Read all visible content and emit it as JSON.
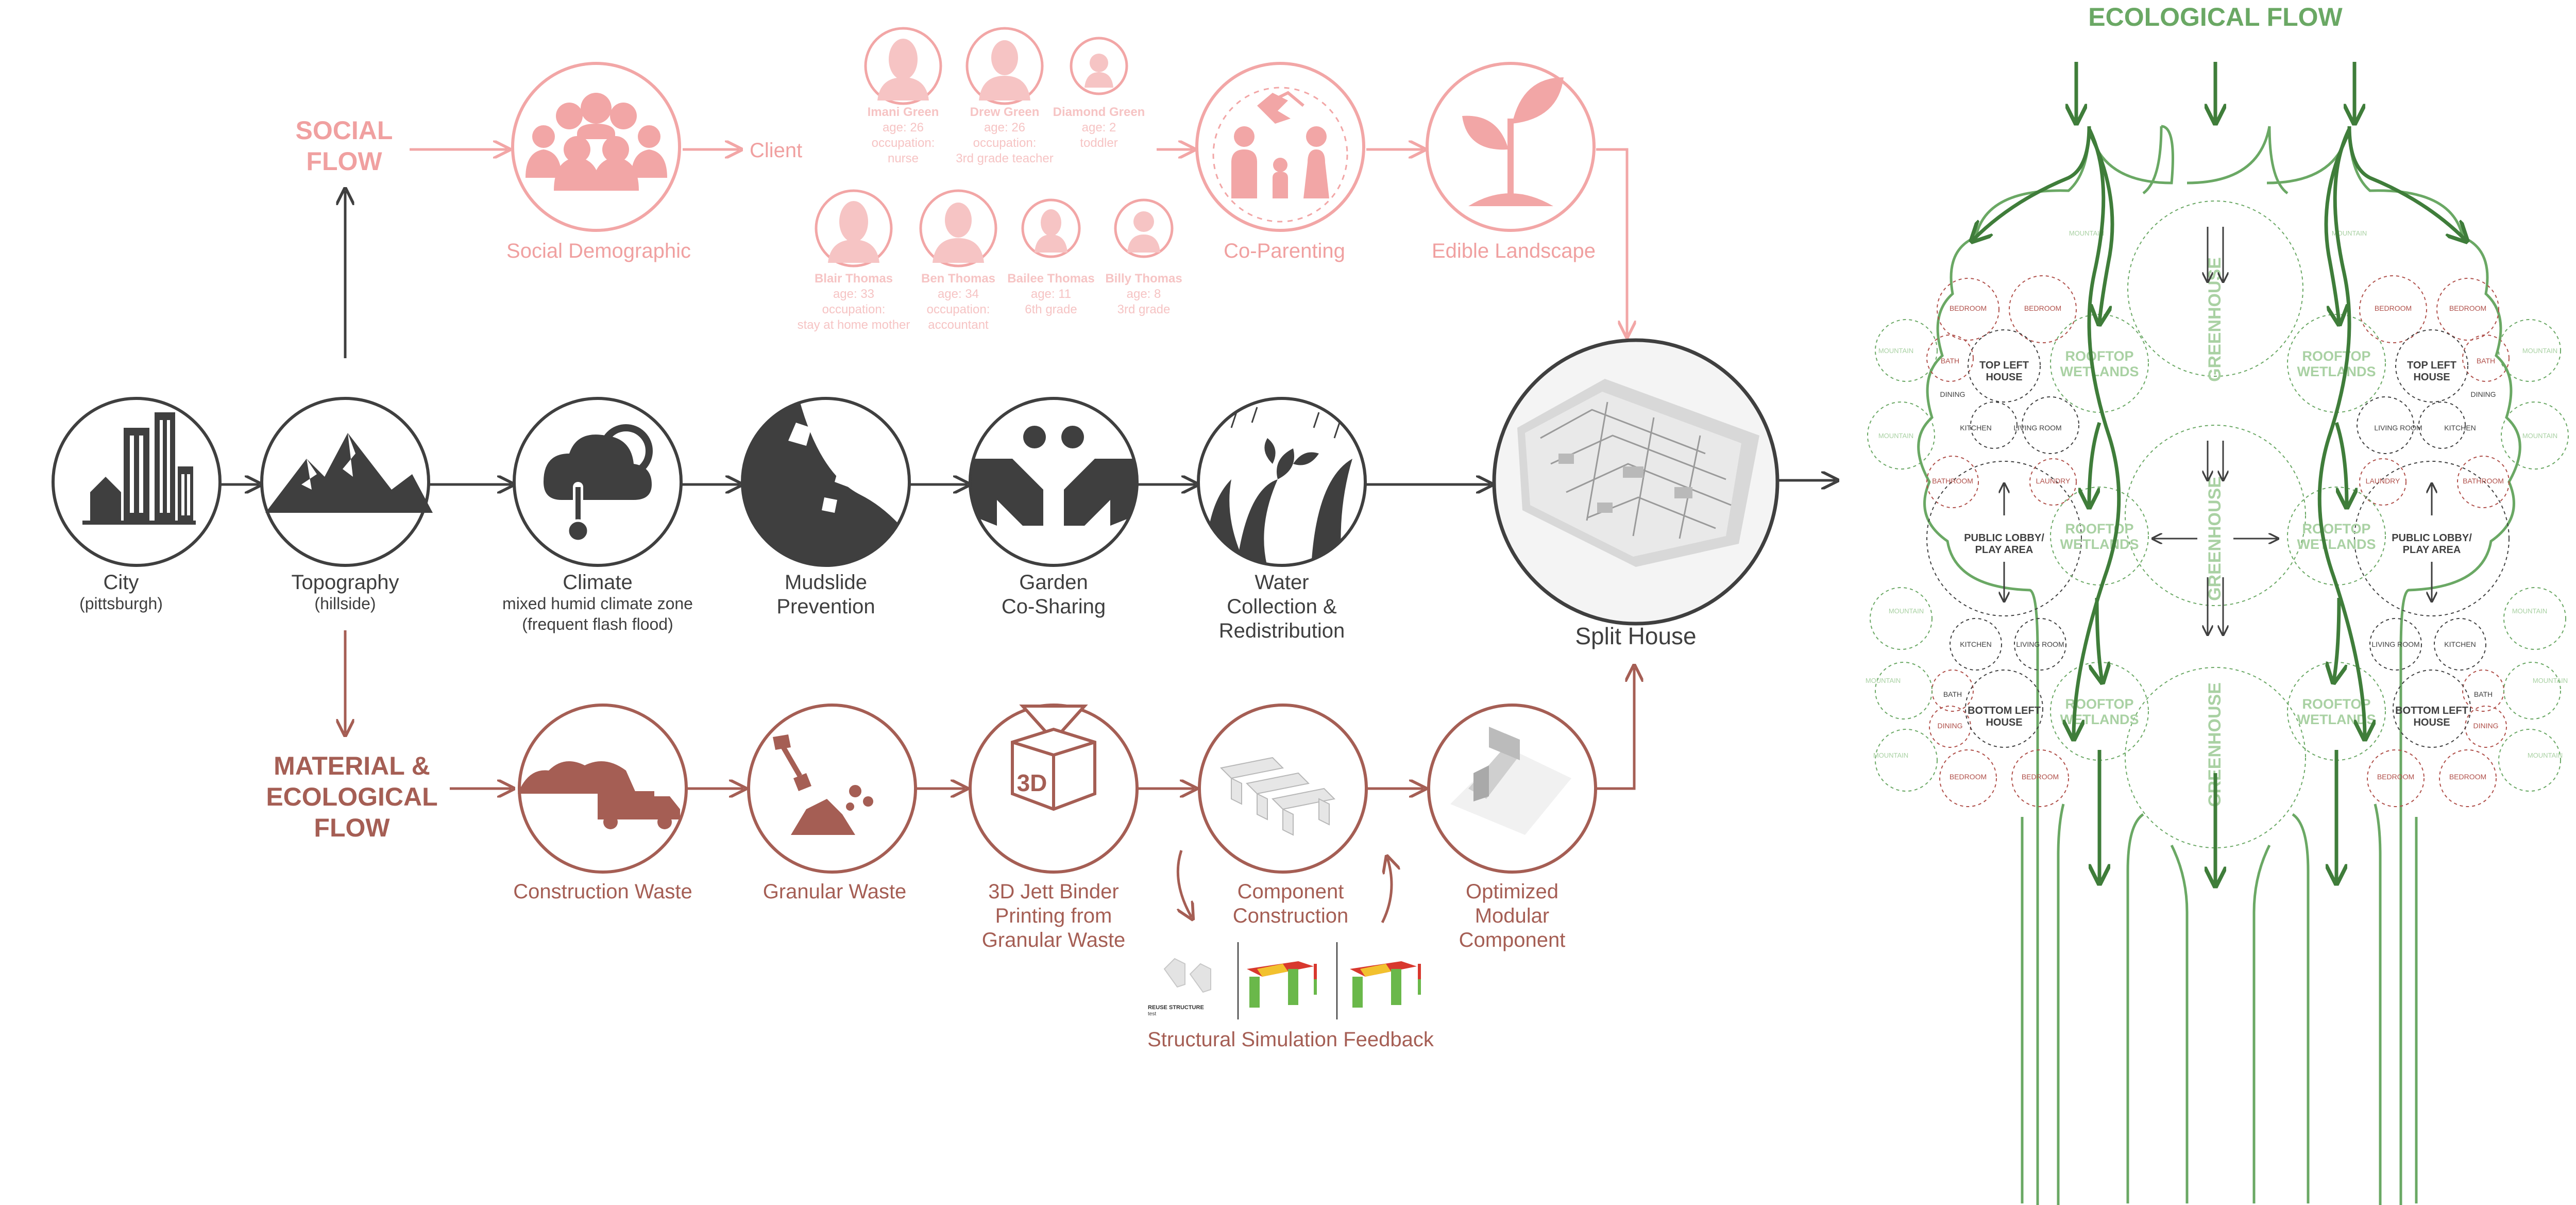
{
  "colors": {
    "dark": "#3f3f3f",
    "pink": "#f2a6a6",
    "pink_text": "#f0a0a0",
    "pink_light": "#f6c4c4",
    "brown": "#a55e54",
    "green": "#6aa864",
    "green_dark": "#3f7d3a",
    "green_light": "#a9d1a3",
    "red_small": "#b0504a"
  },
  "social_flow": {
    "heading_line1": "SOCIAL",
    "heading_line2": "FLOW",
    "social_demographic": "Social Demographic",
    "client": "Client",
    "co_parenting": "Co-Parenting",
    "edible_landscape": "Edible Landscape",
    "people": [
      {
        "name": "Imani Green",
        "age": "age: 26",
        "occ1": "occupation:",
        "occ2": "nurse"
      },
      {
        "name": "Drew Green",
        "age": "age: 26",
        "occ1": "occupation:",
        "occ2": "3rd grade teacher"
      },
      {
        "name": "Diamond Green",
        "age": "age: 2",
        "occ1": "toddler",
        "occ2": ""
      },
      {
        "name": "Blair Thomas",
        "age": "age: 33",
        "occ1": "occupation:",
        "occ2": "stay at home mother"
      },
      {
        "name": "Ben Thomas",
        "age": "age: 34",
        "occ1": "occupation:",
        "occ2": "accountant"
      },
      {
        "name": "Bailee Thomas",
        "age": "age: 11",
        "occ1": "6th grade",
        "occ2": ""
      },
      {
        "name": "Billy Thomas",
        "age": "age: 8",
        "occ1": "3rd grade",
        "occ2": ""
      }
    ]
  },
  "main_flow": {
    "city": "City",
    "city_sub": "(pittsburgh)",
    "topography": "Topography",
    "topography_sub": "(hillside)",
    "climate": "Climate",
    "climate_sub1": "mixed humid climate zone",
    "climate_sub2": "(frequent flash flood)",
    "mudslide1": "Mudslide",
    "mudslide2": "Prevention",
    "garden1": "Garden",
    "garden2": "Co-Sharing",
    "water1": "Water",
    "water2": "Collection &",
    "water3": "Redistribution",
    "split_house": "Split House"
  },
  "material_flow": {
    "heading_line1": "MATERIAL &",
    "heading_line2": "ECOLOGICAL",
    "heading_line3": "FLOW",
    "construction_waste": "Construction Waste",
    "granular_waste": "Granular Waste",
    "printing1": "3D Jett Binder",
    "printing2": "Printing from",
    "printing3": "Granular Waste",
    "printing_icon_text": "3D",
    "component1": "Component",
    "component2": "Construction",
    "optimized1": "Optimized",
    "optimized2": "Modular",
    "optimized3": "Component",
    "feedback": "Structural Simulation Feedback",
    "thumb_caption1": "REUSE STRUCTURE",
    "thumb_caption2": "test"
  },
  "ecological_flow": {
    "title": "ECOLOGICAL FLOW",
    "greenhouse": "GREENHOUSE",
    "rooftop": "ROOFTOP",
    "wetlands": "WETLANDS",
    "top_left_house1": "TOP LEFT",
    "top_left_house2": "HOUSE",
    "bottom_left_house1": "BOTTOM LEFT",
    "bottom_left_house2": "HOUSE",
    "public_lobby1": "PUBLIC LOBBY/",
    "public_lobby2": "PLAY AREA",
    "bedroom": "BEDROOM",
    "bath": "BATH",
    "bathroom": "BATHROOM",
    "laundry": "LAUNDRY",
    "kitchen": "KITCHEN",
    "living_room": "LIVING ROOM",
    "dining": "DINING",
    "mountain": "MOUNTAIN"
  }
}
